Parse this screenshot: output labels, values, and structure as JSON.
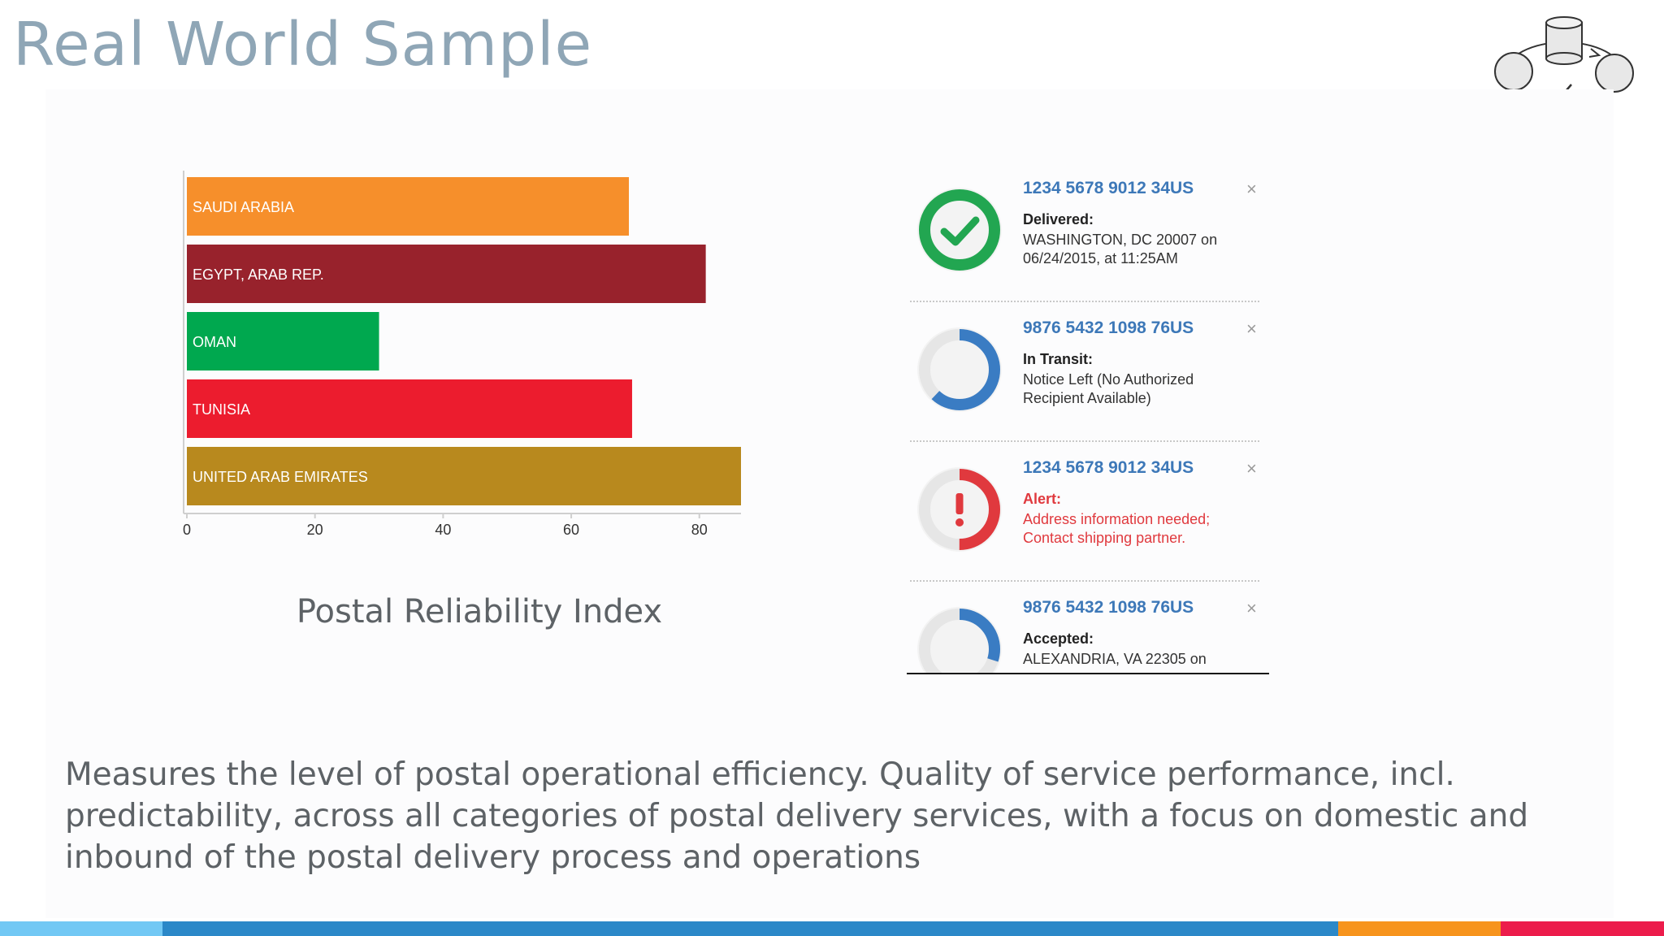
{
  "slide": {
    "title": "Real World Sample",
    "description": "Measures the level of postal operational efficiency. Quality of service performance, incl. predictability, across all categories of postal delivery services, with a focus on domestic and inbound of the postal delivery process and operations",
    "chart_caption": "Postal Reliability Index"
  },
  "chart_data": {
    "type": "bar",
    "orientation": "horizontal",
    "categories": [
      "SAUDI ARABIA",
      "EGYPT, ARAB REP.",
      "OMAN",
      "TUNISIA",
      "UNITED ARAB EMIRATES"
    ],
    "values": [
      69,
      81,
      30,
      69.5,
      86.5
    ],
    "colors": [
      "#f68f2b",
      "#98222c",
      "#00a84f",
      "#ec1c2e",
      "#b8891e"
    ],
    "xticks": [
      0,
      20,
      40,
      60,
      80
    ],
    "xlim": [
      0,
      86.5
    ],
    "title": "",
    "xlabel": "",
    "ylabel": "",
    "grid": false,
    "legend": "none"
  },
  "tracker": {
    "items": [
      {
        "number": "1234 5678 9012 34US",
        "status": "Delivered:",
        "detail": "WASHINGTON, DC 20007 on 06/24/2015, at 11:25AM",
        "type": "delivered",
        "close": "×"
      },
      {
        "number": "9876 5432 1098 76US",
        "status": "In Transit:",
        "detail": "Notice Left (No Authorized Recipient Available)",
        "type": "transit",
        "close": "×"
      },
      {
        "number": "1234 5678 9012 34US",
        "status": "Alert:",
        "detail": "Address information needed; Contact shipping partner.",
        "type": "alert",
        "close": "×"
      },
      {
        "number": "9876 5432 1098 76US",
        "status": "Accepted:",
        "detail": "ALEXANDRIA, VA 22305 on",
        "type": "accepted",
        "close": "×"
      }
    ],
    "icons": {
      "delivered": "checkmark-circle-icon",
      "transit": "progress-ring-icon",
      "alert": "alert-circle-icon",
      "accepted": "progress-ring-icon"
    },
    "colors": {
      "delivered": "#22a651",
      "transit": "#3a7cc3",
      "alert": "#e0393e",
      "ring_track": "#e6e6e6",
      "number": "#3d78b8"
    }
  },
  "logo": {
    "icon": "database-cycle-icon"
  },
  "bottom_bar_colors": [
    "#72c8f4",
    "#2b88c8",
    "#f7941d",
    "#ec1c4b"
  ]
}
